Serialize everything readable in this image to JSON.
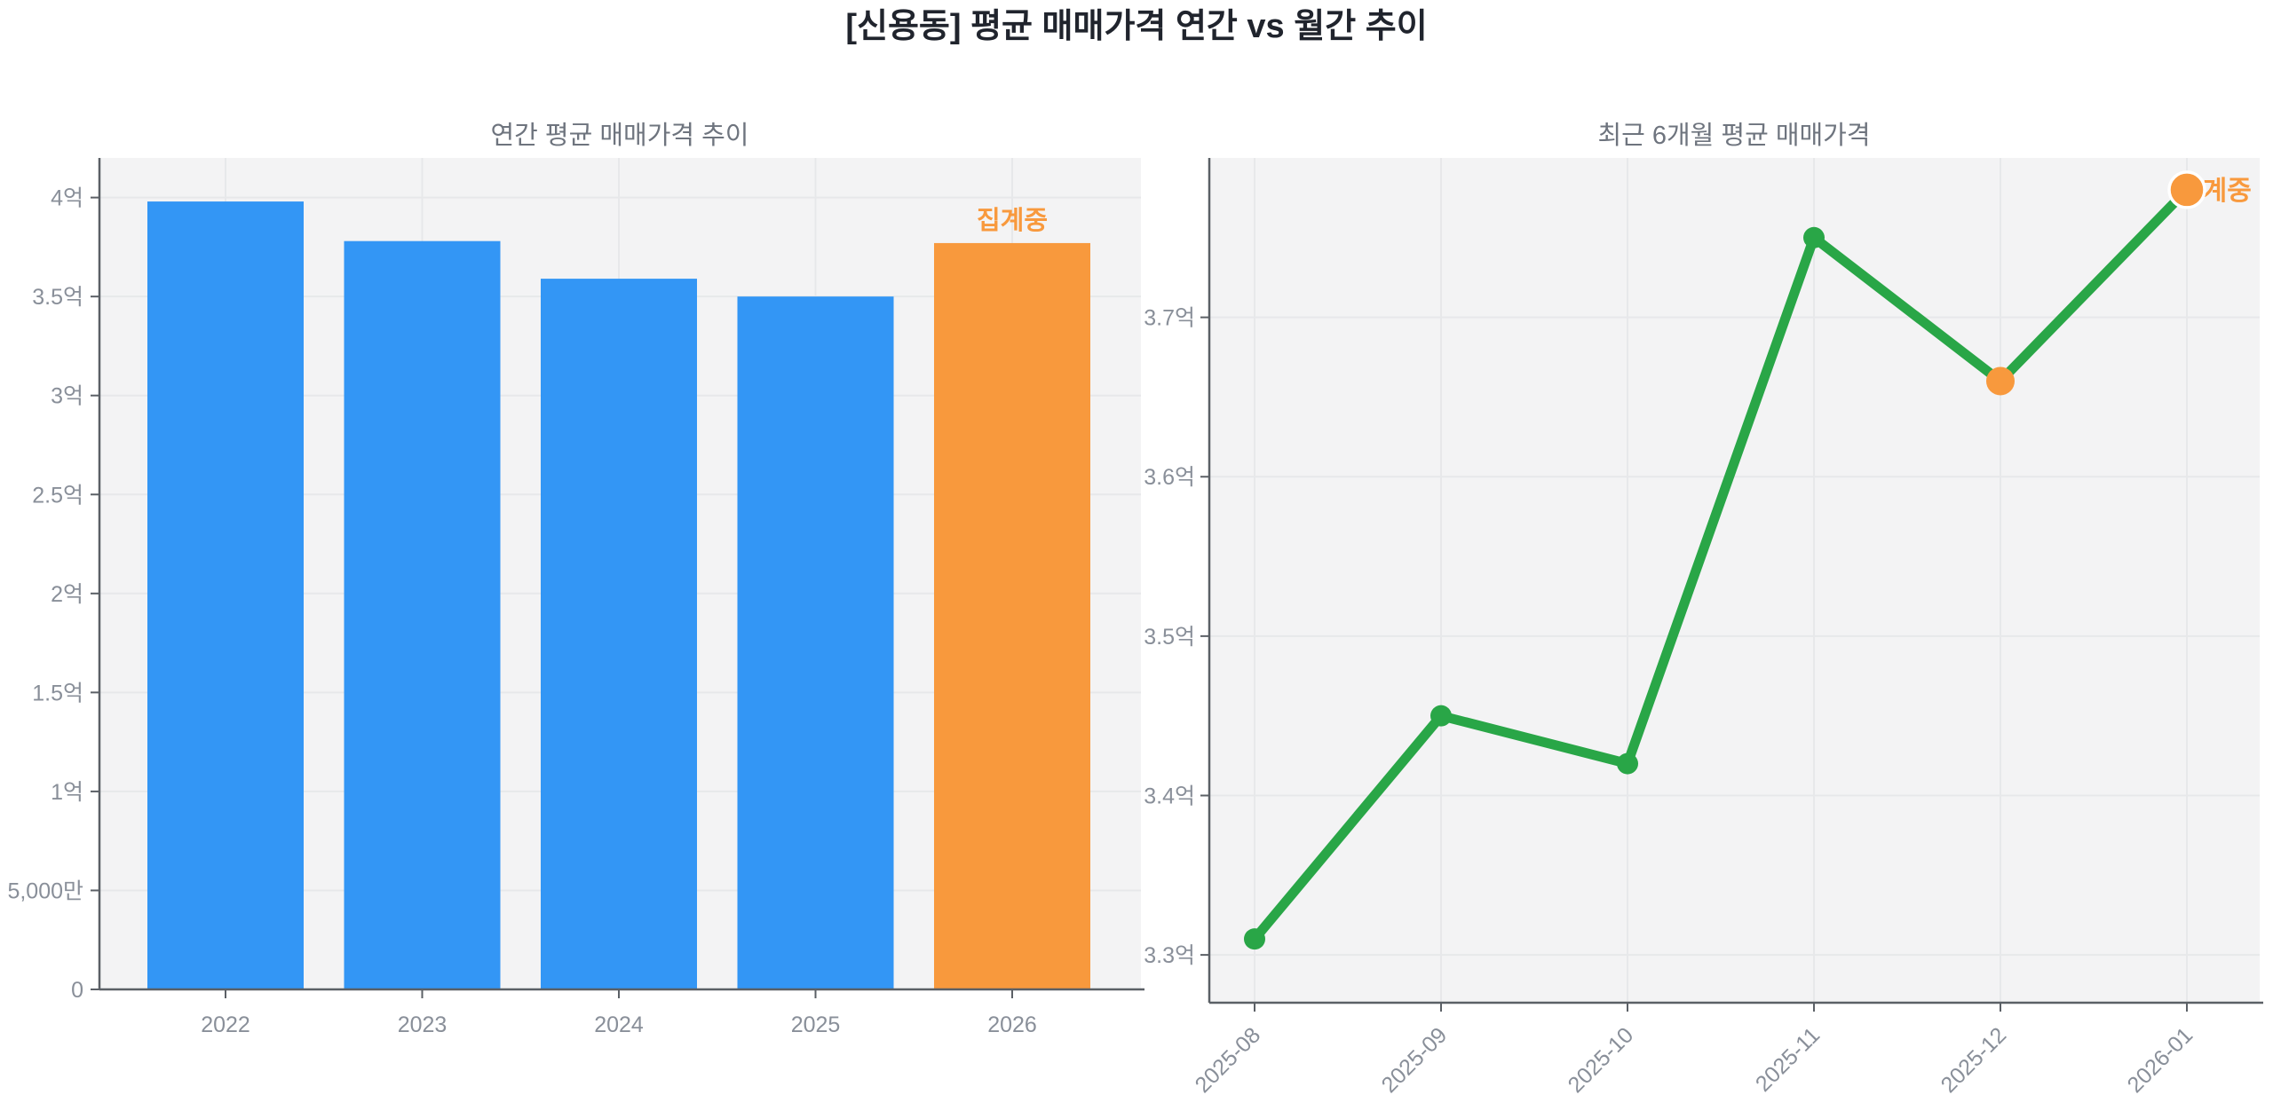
{
  "figure": {
    "title": "[신용동] 평균 매매가격 연간 vs 월간 추이"
  },
  "colors": {
    "background": "#ffffff",
    "plot_bg": "#f3f3f4",
    "grid": "#e7e8ea",
    "spine": "#5b6066",
    "tick_label": "#898f99",
    "subtitle": "#6e747e",
    "title_text": "#20242d",
    "bar_blue": "#3396f5",
    "accent_orange": "#f8993d",
    "line_green": "#29a647"
  },
  "chart_data": [
    {
      "type": "bar",
      "title": "연간 평균 매매가격 추이",
      "categories": [
        "2022",
        "2023",
        "2024",
        "2025",
        "2026"
      ],
      "values_eok": [
        3.98,
        3.78,
        3.59,
        3.5,
        3.77
      ],
      "unit": "억 (1e8 KRW)",
      "ylim_eok": [
        0,
        4.2
      ],
      "yticks": [
        {
          "v": 0,
          "label": "0"
        },
        {
          "v": 0.5,
          "label": "5,000만"
        },
        {
          "v": 1,
          "label": "1억"
        },
        {
          "v": 1.5,
          "label": "1.5억"
        },
        {
          "v": 2,
          "label": "2억"
        },
        {
          "v": 2.5,
          "label": "2.5억"
        },
        {
          "v": 3,
          "label": "3억"
        },
        {
          "v": 3.5,
          "label": "3.5억"
        },
        {
          "v": 4,
          "label": "4억"
        }
      ],
      "bar_colors": [
        "blue",
        "blue",
        "blue",
        "blue",
        "orange"
      ],
      "annotation": {
        "text": "집계중",
        "target_index": 4
      },
      "grid": true,
      "legend": null
    },
    {
      "type": "line",
      "title": "최근 6개월 평균 매매가격",
      "x": [
        "2025-08",
        "2025-09",
        "2025-10",
        "2025-11",
        "2025-12",
        "2026-01"
      ],
      "values_eok": [
        3.31,
        3.45,
        3.42,
        3.75,
        3.66,
        3.78
      ],
      "unit": "억 (1e8 KRW)",
      "ylim_eok": [
        3.27,
        3.8
      ],
      "yticks": [
        {
          "v": 3.3,
          "label": "3.3억"
        },
        {
          "v": 3.4,
          "label": "3.4억"
        },
        {
          "v": 3.5,
          "label": "3.5억"
        },
        {
          "v": 3.6,
          "label": "3.6억"
        },
        {
          "v": 3.7,
          "label": "3.7억"
        }
      ],
      "point_colors": [
        "green",
        "green",
        "green",
        "green",
        "orange",
        "orange"
      ],
      "annotation": {
        "text": "집계중",
        "target_index": 5
      },
      "grid": true,
      "legend": null
    }
  ]
}
